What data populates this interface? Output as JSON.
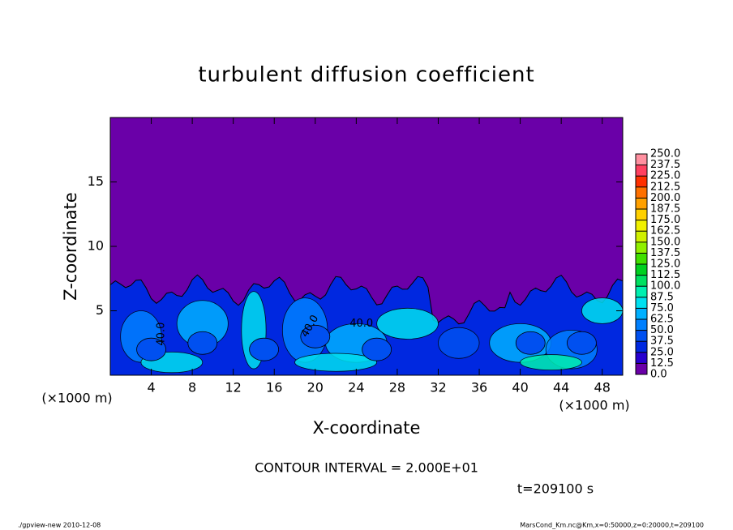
{
  "chart_data": {
    "type": "contour",
    "title": "turbulent diffusion coefficient",
    "xlabel": "X-coordinate",
    "ylabel": "Z-coordinate",
    "xunit": "(×1000 m)",
    "yunit": "(×1000 m)",
    "xlim": [
      0,
      50
    ],
    "xticks": [
      4,
      8,
      12,
      16,
      20,
      24,
      28,
      32,
      36,
      40,
      44,
      48
    ],
    "ylim": [
      0,
      20
    ],
    "yticks": [
      5,
      10,
      15
    ],
    "levels": [
      {
        "value": 0,
        "label": "0.0"
      },
      {
        "value": 12.5,
        "label": "12.5"
      },
      {
        "value": 25,
        "label": "25.0"
      },
      {
        "value": 37.5,
        "label": "37.5"
      },
      {
        "value": 50,
        "label": "50.0"
      },
      {
        "value": 62.5,
        "label": "62.5"
      },
      {
        "value": 75,
        "label": "75.0"
      },
      {
        "value": 87.5,
        "label": "87.5"
      },
      {
        "value": 100,
        "label": "100.0"
      },
      {
        "value": 112.5,
        "label": "112.5"
      },
      {
        "value": 125,
        "label": "125.0"
      },
      {
        "value": 137.5,
        "label": "137.5"
      },
      {
        "value": 150,
        "label": "150.0"
      },
      {
        "value": 162.5,
        "label": "162.5"
      },
      {
        "value": 175,
        "label": "175.0"
      },
      {
        "value": 187.5,
        "label": "187.5"
      },
      {
        "value": 200,
        "label": "200.0"
      },
      {
        "value": 212.5,
        "label": "212.5"
      },
      {
        "value": 225,
        "label": "225.0"
      },
      {
        "value": 237.5,
        "label": "237.5"
      },
      {
        "value": 250,
        "label": "250.0"
      }
    ],
    "level_colors": [
      "#6a00a8",
      "#2800d0",
      "#0028e0",
      "#0050f0",
      "#0080ff",
      "#00b0ff",
      "#00e0f0",
      "#00f0b0",
      "#00e060",
      "#00d020",
      "#40e000",
      "#90f000",
      "#d0f000",
      "#f0f000",
      "#ffd000",
      "#ffa000",
      "#ff7000",
      "#ff3000",
      "#ff4060",
      "#ff90a0"
    ],
    "contour_labels": [
      {
        "value": 40,
        "label": "40.0"
      },
      {
        "value": 40,
        "label": "40.0"
      },
      {
        "value": 40,
        "label": "40.0"
      }
    ],
    "annotation": "CONTOUR INTERVAL = 2.000E+01",
    "time": "t=209100 s",
    "footer_left": "./gpview-new  2010-12-08",
    "footer_right": "MarsCond_Km.nc@Km,x=0:50000,z=0:20000,t=209100"
  }
}
